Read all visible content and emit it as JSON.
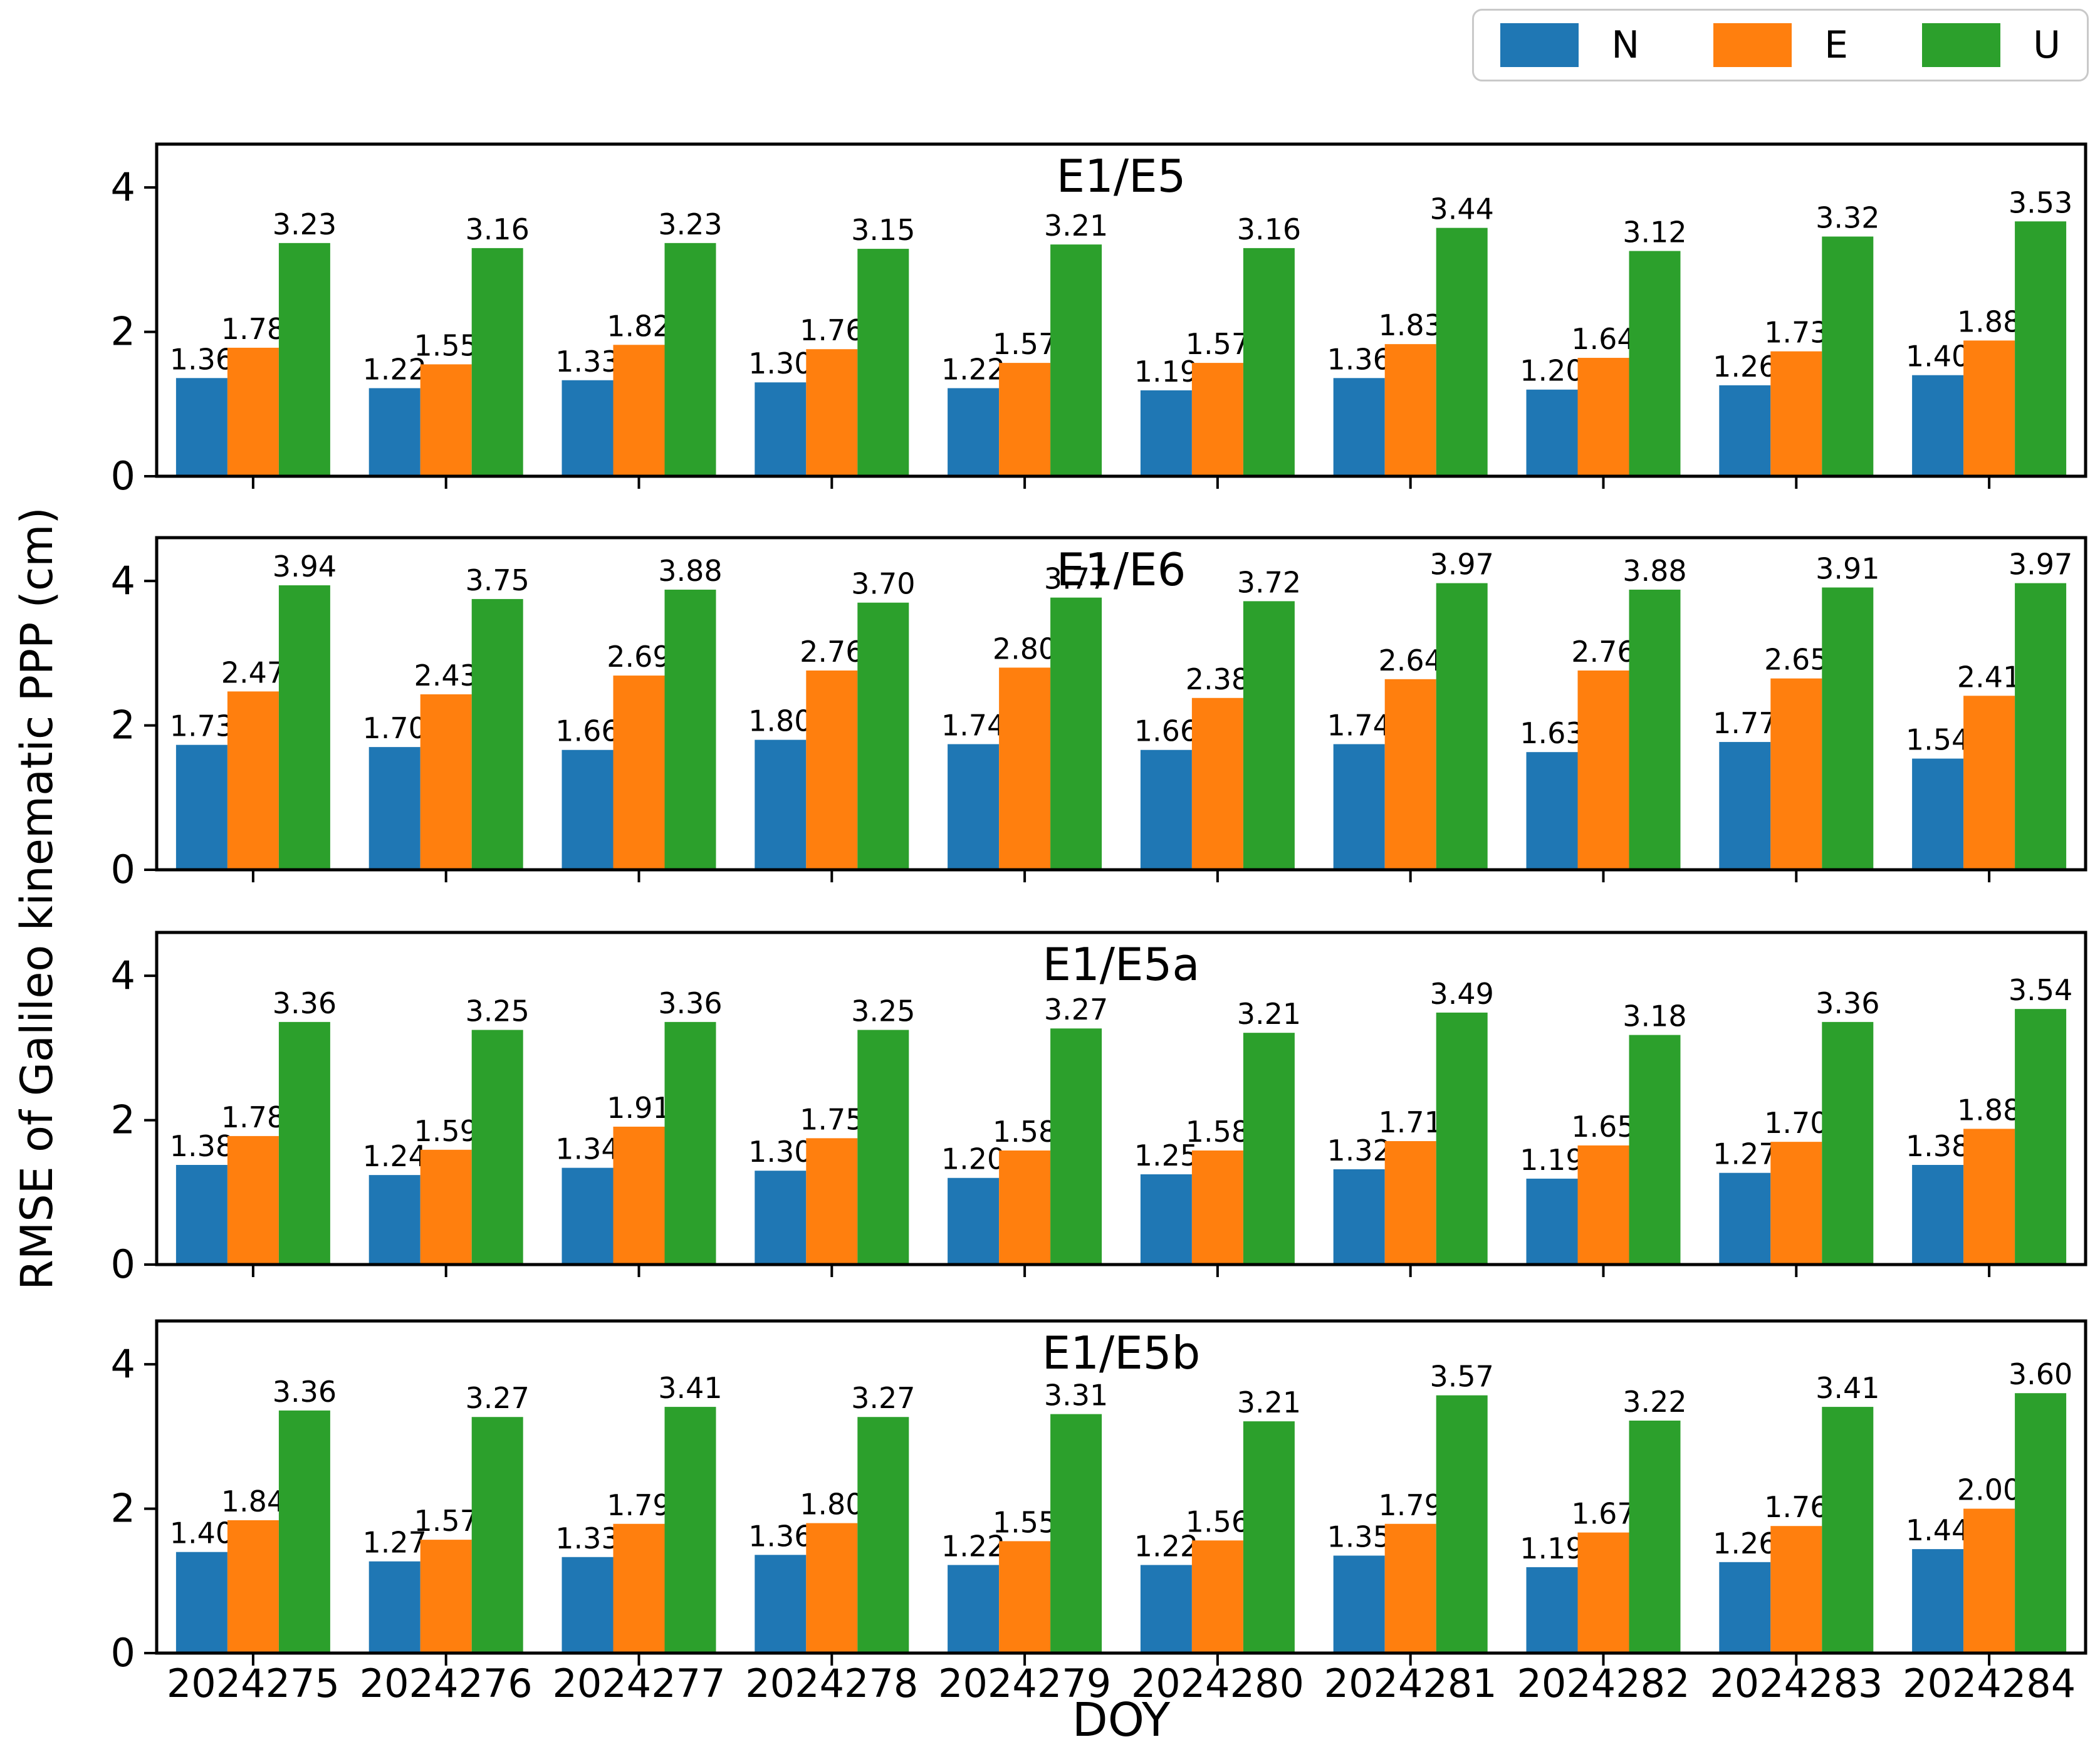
{
  "figure": {
    "ylabel": "RMSE of Galileo kinematic PPP (cm)",
    "xlabel": "DOY",
    "background": "#ffffff",
    "text_color": "#000000"
  },
  "legend": {
    "position": "top-right",
    "items": [
      {
        "label": "N",
        "color": "#1f77b4"
      },
      {
        "label": "E",
        "color": "#ff7f0e"
      },
      {
        "label": "U",
        "color": "#2ca02c"
      }
    ]
  },
  "chart_data": [
    {
      "type": "bar",
      "title": "E1/E5",
      "categories": [
        "2024275",
        "2024276",
        "2024277",
        "2024278",
        "2024279",
        "2024280",
        "2024281",
        "2024282",
        "2024283",
        "2024284"
      ],
      "series": [
        {
          "name": "N",
          "color": "#1f77b4",
          "values": [
            1.36,
            1.22,
            1.33,
            1.3,
            1.22,
            1.19,
            1.36,
            1.2,
            1.26,
            1.4
          ]
        },
        {
          "name": "E",
          "color": "#ff7f0e",
          "values": [
            1.78,
            1.55,
            1.82,
            1.76,
            1.57,
            1.57,
            1.83,
            1.64,
            1.73,
            1.88
          ]
        },
        {
          "name": "U",
          "color": "#2ca02c",
          "values": [
            3.23,
            3.16,
            3.23,
            3.15,
            3.21,
            3.16,
            3.44,
            3.12,
            3.32,
            3.53
          ]
        }
      ],
      "ylim": [
        0,
        4.6
      ],
      "yticks": [
        0,
        2,
        4
      ],
      "grid": false,
      "value_labels": true,
      "show_xticklabels": false
    },
    {
      "type": "bar",
      "title": "E1/E6",
      "categories": [
        "2024275",
        "2024276",
        "2024277",
        "2024278",
        "2024279",
        "2024280",
        "2024281",
        "2024282",
        "2024283",
        "2024284"
      ],
      "series": [
        {
          "name": "N",
          "color": "#1f77b4",
          "values": [
            1.73,
            1.7,
            1.66,
            1.8,
            1.74,
            1.66,
            1.74,
            1.63,
            1.77,
            1.54
          ]
        },
        {
          "name": "E",
          "color": "#ff7f0e",
          "values": [
            2.47,
            2.43,
            2.69,
            2.76,
            2.8,
            2.38,
            2.64,
            2.76,
            2.65,
            2.41
          ]
        },
        {
          "name": "U",
          "color": "#2ca02c",
          "values": [
            3.94,
            3.75,
            3.88,
            3.7,
            3.77,
            3.72,
            3.97,
            3.88,
            3.91,
            3.97
          ]
        }
      ],
      "ylim": [
        0,
        4.6
      ],
      "yticks": [
        0,
        2,
        4
      ],
      "grid": false,
      "value_labels": true,
      "show_xticklabels": false
    },
    {
      "type": "bar",
      "title": "E1/E5a",
      "categories": [
        "2024275",
        "2024276",
        "2024277",
        "2024278",
        "2024279",
        "2024280",
        "2024281",
        "2024282",
        "2024283",
        "2024284"
      ],
      "series": [
        {
          "name": "N",
          "color": "#1f77b4",
          "values": [
            1.38,
            1.24,
            1.34,
            1.3,
            1.2,
            1.25,
            1.32,
            1.19,
            1.27,
            1.38
          ]
        },
        {
          "name": "E",
          "color": "#ff7f0e",
          "values": [
            1.78,
            1.59,
            1.91,
            1.75,
            1.58,
            1.58,
            1.71,
            1.65,
            1.7,
            1.88
          ]
        },
        {
          "name": "U",
          "color": "#2ca02c",
          "values": [
            3.36,
            3.25,
            3.36,
            3.25,
            3.27,
            3.21,
            3.49,
            3.18,
            3.36,
            3.54
          ]
        }
      ],
      "ylim": [
        0,
        4.6
      ],
      "yticks": [
        0,
        2,
        4
      ],
      "grid": false,
      "value_labels": true,
      "show_xticklabels": false
    },
    {
      "type": "bar",
      "title": "E1/E5b",
      "categories": [
        "2024275",
        "2024276",
        "2024277",
        "2024278",
        "2024279",
        "2024280",
        "2024281",
        "2024282",
        "2024283",
        "2024284"
      ],
      "series": [
        {
          "name": "N",
          "color": "#1f77b4",
          "values": [
            1.4,
            1.27,
            1.33,
            1.36,
            1.22,
            1.22,
            1.35,
            1.19,
            1.26,
            1.44
          ]
        },
        {
          "name": "E",
          "color": "#ff7f0e",
          "values": [
            1.84,
            1.57,
            1.79,
            1.8,
            1.55,
            1.56,
            1.79,
            1.67,
            1.76,
            2.0
          ]
        },
        {
          "name": "U",
          "color": "#2ca02c",
          "values": [
            3.36,
            3.27,
            3.41,
            3.27,
            3.31,
            3.21,
            3.57,
            3.22,
            3.41,
            3.6
          ]
        }
      ],
      "ylim": [
        0,
        4.6
      ],
      "yticks": [
        0,
        2,
        4
      ],
      "grid": false,
      "value_labels": true,
      "show_xticklabels": true
    }
  ]
}
